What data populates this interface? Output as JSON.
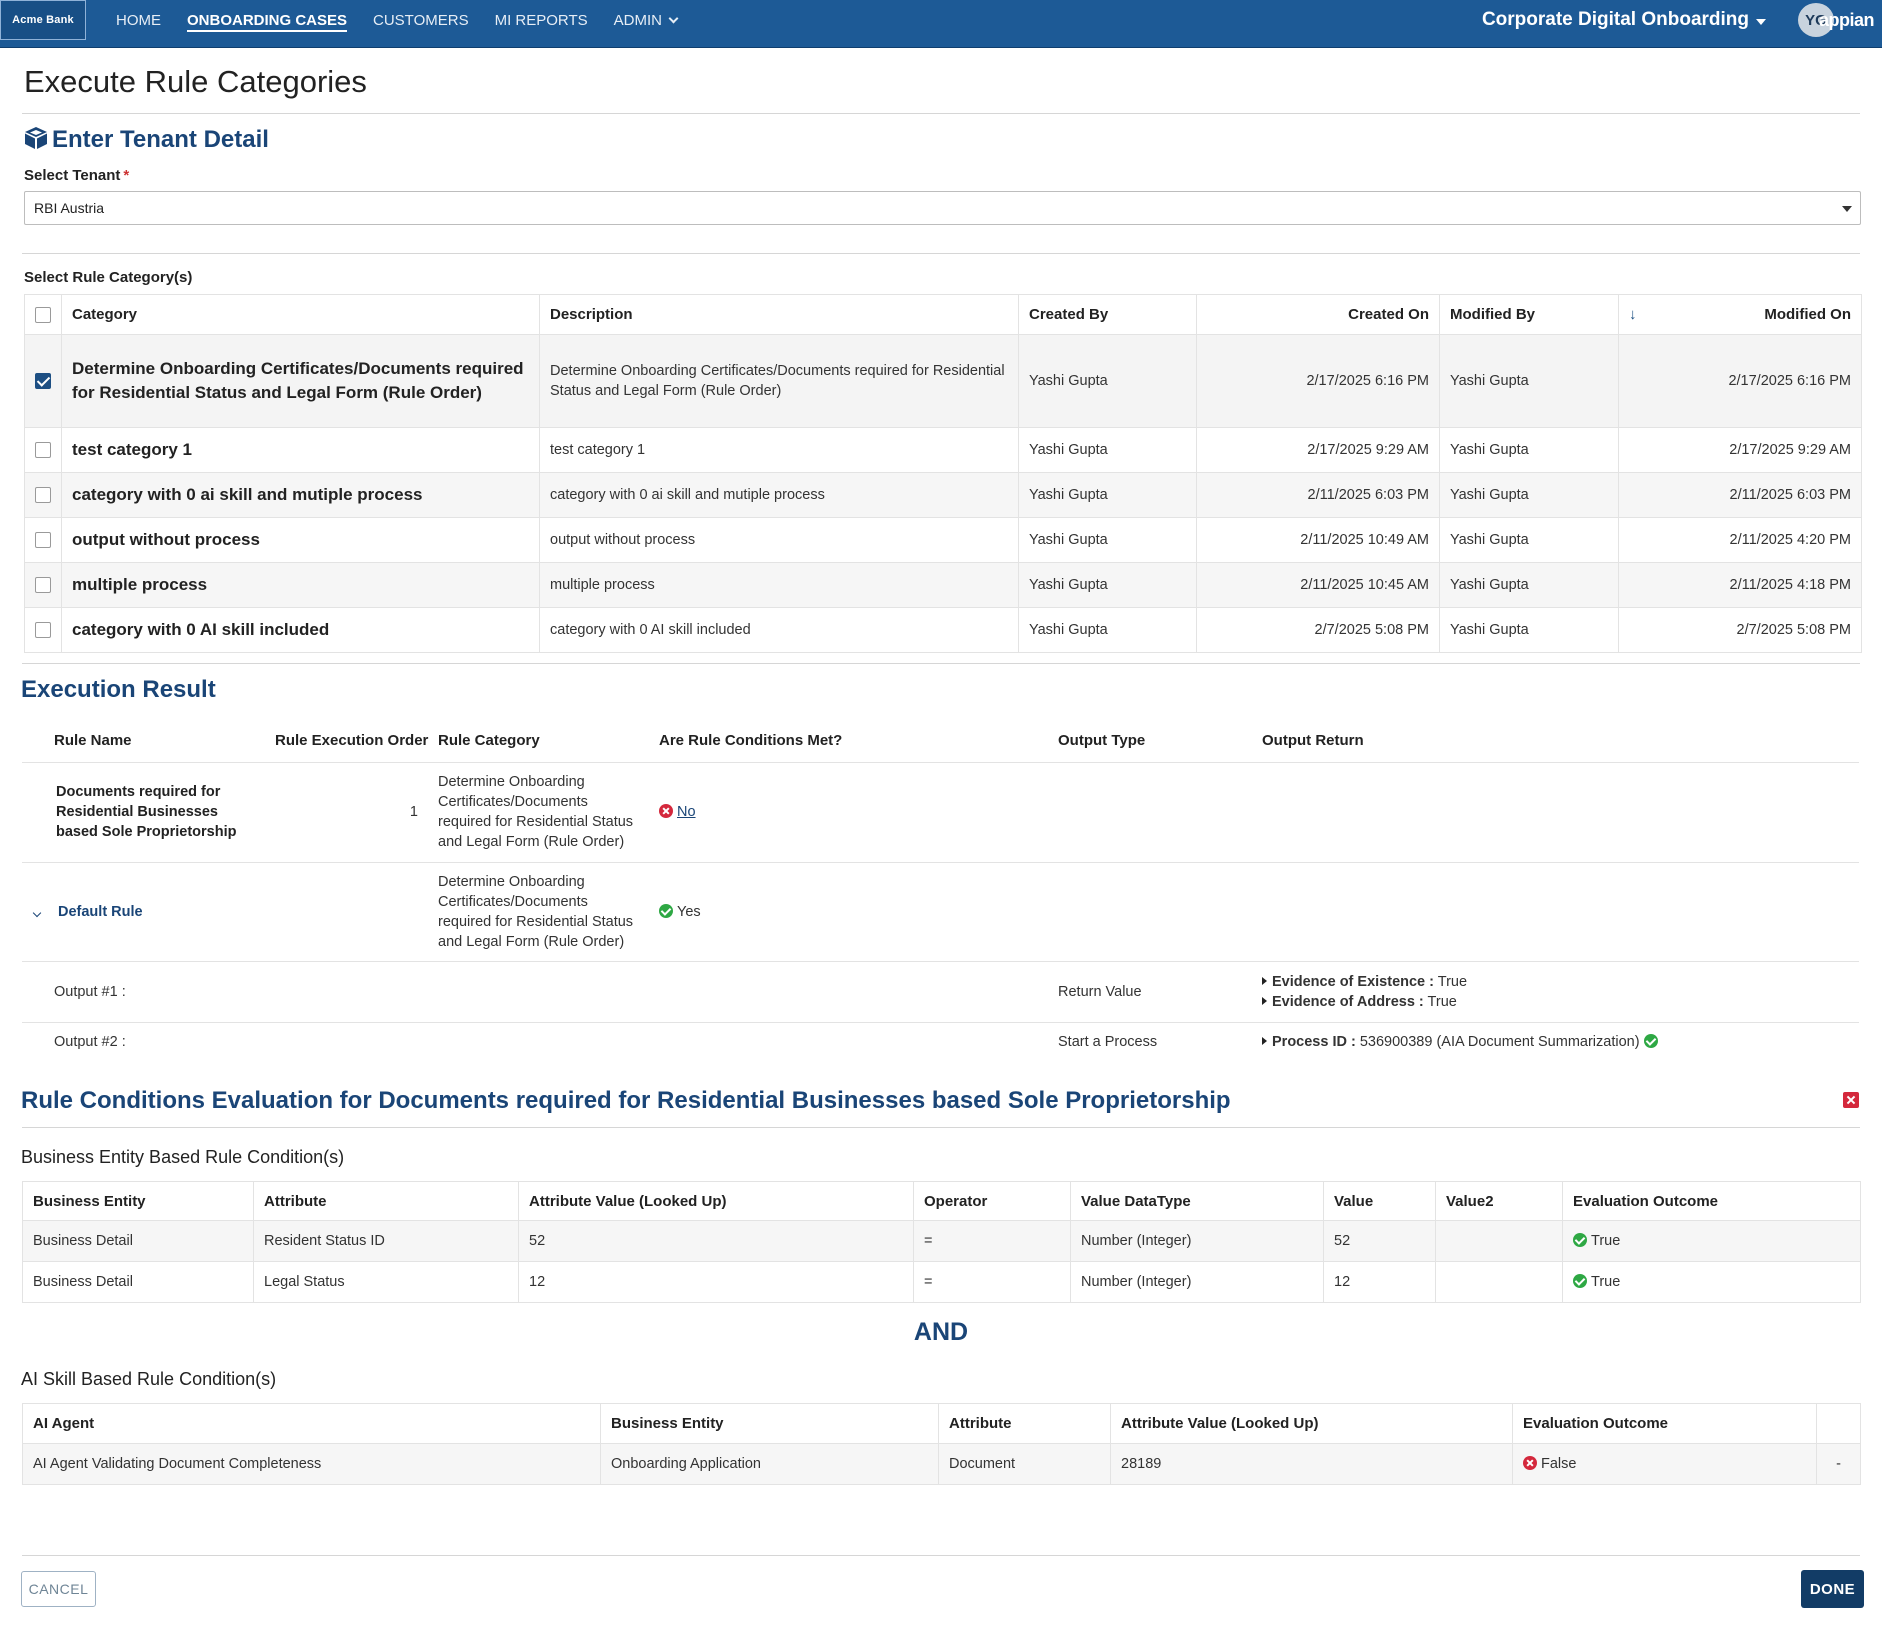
{
  "header": {
    "logo_text": "Acme Bank",
    "nav": [
      "HOME",
      "ONBOARDING CASES",
      "CUSTOMERS",
      "MI REPORTS",
      "ADMIN"
    ],
    "active_nav": "ONBOARDING CASES",
    "app_name": "Corporate Digital Onboarding",
    "avatar_initials": "YG",
    "brand": "appian",
    "brand_color": "#1d5a96"
  },
  "page": {
    "title": "Execute Rule Categories"
  },
  "tenant": {
    "section_title": "Enter Tenant Detail",
    "select_label": "Select Tenant",
    "required_mark": "*",
    "selected": "RBI Austria"
  },
  "categories": {
    "label": "Select Rule Category(s)",
    "headers": [
      "Category",
      "Description",
      "Created By",
      "Created On",
      "Modified By",
      "Modified On"
    ],
    "sort_indicator": "↓",
    "rows": [
      {
        "checked": true,
        "category": "Determine Onboarding Certificates/Documents required for Residential Status and Legal Form (Rule Order)",
        "description": "Determine Onboarding Certificates/Documents required for Residential Status and Legal Form (Rule Order)",
        "created_by": "Yashi Gupta",
        "created_on": "2/17/2025 6:16 PM",
        "modified_by": "Yashi Gupta",
        "modified_on": "2/17/2025 6:16 PM"
      },
      {
        "checked": false,
        "category": "test category 1",
        "description": "test category 1",
        "created_by": "Yashi Gupta",
        "created_on": "2/17/2025 9:29 AM",
        "modified_by": "Yashi Gupta",
        "modified_on": "2/17/2025 9:29 AM"
      },
      {
        "checked": false,
        "category": "category with 0 ai skill and mutiple process",
        "description": "category with 0 ai skill and mutiple process",
        "created_by": "Yashi Gupta",
        "created_on": "2/11/2025 6:03 PM",
        "modified_by": "Yashi Gupta",
        "modified_on": "2/11/2025 6:03 PM"
      },
      {
        "checked": false,
        "category": "output without process",
        "description": "output without process",
        "created_by": "Yashi Gupta",
        "created_on": "2/11/2025 10:49 AM",
        "modified_by": "Yashi Gupta",
        "modified_on": "2/11/2025 4:20 PM"
      },
      {
        "checked": false,
        "category": "multiple process",
        "description": "multiple process",
        "created_by": "Yashi Gupta",
        "created_on": "2/11/2025 10:45 AM",
        "modified_by": "Yashi Gupta",
        "modified_on": "2/11/2025 4:18 PM"
      },
      {
        "checked": false,
        "category": "category with 0 AI skill included",
        "description": "category with 0 AI skill included",
        "created_by": "Yashi Gupta",
        "created_on": "2/7/2025 5:08 PM",
        "modified_by": "Yashi Gupta",
        "modified_on": "2/7/2025 5:08 PM"
      }
    ]
  },
  "execution": {
    "title": "Execution Result",
    "headers": [
      "Rule Name",
      "Rule Execution Order",
      "Rule Category",
      "Are Rule Conditions Met?",
      "Output Type",
      "Output Return"
    ],
    "rule1": {
      "name": "Documents required for Residential Businesses based Sole Proprietorship",
      "order": "1",
      "category": "Determine Onboarding Certificates/Documents required for Residential Status and Legal Form (Rule Order)",
      "met": "No"
    },
    "rule2": {
      "name": "Default Rule",
      "category": "Determine Onboarding Certificates/Documents required for Residential Status and Legal Form (Rule Order)",
      "met": "Yes"
    },
    "output1": {
      "label": "Output #1 :",
      "type": "Return Value",
      "items": [
        {
          "key": "Evidence of Existence :",
          "value": "True"
        },
        {
          "key": "Evidence of Address :",
          "value": "True"
        }
      ]
    },
    "output2": {
      "label": "Output #2 :",
      "type": "Start a Process",
      "key": "Process ID :",
      "value": "536900389 (AIA Document Summarization)"
    }
  },
  "evaluation": {
    "title": "Rule Conditions Evaluation for Documents required for Residential Businesses based Sole Proprietorship",
    "be_title": "Business Entity Based Rule Condition(s)",
    "be_headers": [
      "Business Entity",
      "Attribute",
      "Attribute Value (Looked Up)",
      "Operator",
      "Value DataType",
      "Value",
      "Value2",
      "Evaluation Outcome"
    ],
    "be_rows": [
      {
        "entity": "Business Detail",
        "attribute": "Resident Status ID",
        "looked_up": "52",
        "operator": "=",
        "datatype": "Number (Integer)",
        "value": "52",
        "value2": "",
        "outcome": "True"
      },
      {
        "entity": "Business Detail",
        "attribute": "Legal Status",
        "looked_up": "12",
        "operator": "=",
        "datatype": "Number (Integer)",
        "value": "12",
        "value2": "",
        "outcome": "True"
      }
    ],
    "and_label": "AND",
    "ai_title": "AI Skill Based Rule Condition(s)",
    "ai_headers": [
      "AI Agent",
      "Business Entity",
      "Attribute",
      "Attribute Value (Looked Up)",
      "Evaluation Outcome"
    ],
    "ai_rows": [
      {
        "agent": "AI Agent Validating Document Completeness",
        "entity": "Onboarding Application",
        "attribute": "Document",
        "looked_up": "28189",
        "outcome": "False",
        "extra": "-"
      }
    ]
  },
  "footer": {
    "cancel": "CANCEL",
    "done": "DONE"
  }
}
